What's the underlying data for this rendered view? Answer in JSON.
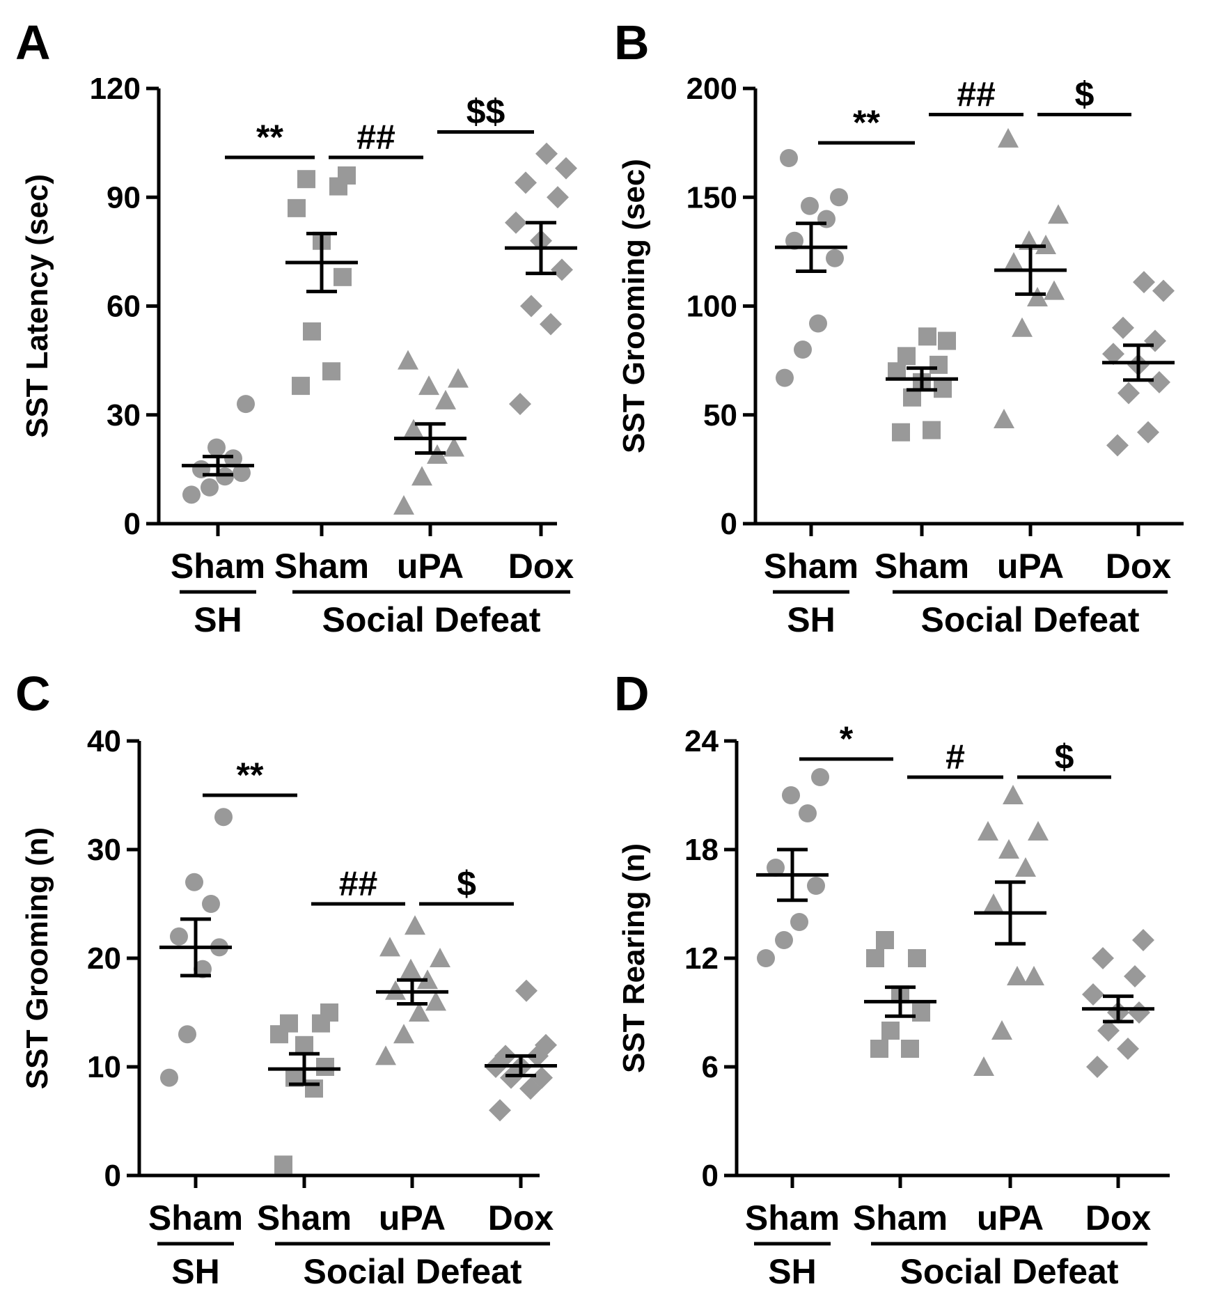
{
  "categories": [
    "Sham",
    "Sham",
    "uPA",
    "Dox"
  ],
  "groups": {
    "sh": "SH",
    "social_defeat": "Social Defeat"
  },
  "colors": {
    "points": "#999999",
    "lines": "#000000"
  },
  "chart_data": [
    {
      "panel": "A",
      "type": "scatter",
      "ylabel": "SST Latency (sec)",
      "ylim": [
        0,
        120
      ],
      "yticks": [
        0,
        30,
        60,
        90,
        120
      ],
      "series": [
        {
          "name": "SH Sham",
          "marker": "circle",
          "mean": 16,
          "sem": 2.5,
          "values": [
            8,
            10,
            13,
            14,
            15,
            18,
            21,
            33
          ]
        },
        {
          "name": "Social Defeat Sham",
          "marker": "square",
          "mean": 72,
          "sem": 8,
          "values": [
            38,
            42,
            53,
            68,
            78,
            87,
            93,
            95,
            96
          ]
        },
        {
          "name": "Social Defeat uPA",
          "marker": "triangle",
          "mean": 23.5,
          "sem": 4,
          "values": [
            5,
            13,
            19,
            21,
            26,
            34,
            38,
            40,
            45
          ]
        },
        {
          "name": "Social Defeat Dox",
          "marker": "diamond",
          "mean": 76,
          "sem": 7,
          "values": [
            33,
            55,
            60,
            70,
            78,
            83,
            90,
            94,
            98,
            102
          ]
        }
      ],
      "significance": [
        {
          "label": "**",
          "from": 0,
          "to": 1,
          "y": 101
        },
        {
          "label": "##",
          "from": 1,
          "to": 2,
          "y": 101
        },
        {
          "label": "$$",
          "from": 2,
          "to": 3,
          "y": 108
        }
      ]
    },
    {
      "panel": "B",
      "type": "scatter",
      "ylabel": "SST Grooming (sec)",
      "ylim": [
        0,
        200
      ],
      "yticks": [
        0,
        50,
        100,
        150,
        200
      ],
      "series": [
        {
          "name": "SH Sham",
          "marker": "circle",
          "mean": 127,
          "sem": 11,
          "values": [
            67,
            80,
            92,
            122,
            130,
            140,
            146,
            150,
            168
          ]
        },
        {
          "name": "Social Defeat Sham",
          "marker": "square",
          "mean": 66.5,
          "sem": 5,
          "values": [
            42,
            43,
            58,
            62,
            65,
            70,
            73,
            77,
            84,
            86
          ]
        },
        {
          "name": "Social Defeat uPA",
          "marker": "triangle",
          "mean": 116.5,
          "sem": 11,
          "values": [
            48,
            90,
            104,
            107,
            120,
            128,
            130,
            142,
            177
          ]
        },
        {
          "name": "Social Defeat Dox",
          "marker": "diamond",
          "mean": 74,
          "sem": 8,
          "values": [
            36,
            42,
            60,
            65,
            73,
            78,
            84,
            90,
            107,
            111
          ]
        }
      ],
      "significance": [
        {
          "label": "**",
          "from": 0,
          "to": 1,
          "y": 175
        },
        {
          "label": "##",
          "from": 1,
          "to": 2,
          "y": 188
        },
        {
          "label": "$",
          "from": 2,
          "to": 3,
          "y": 188
        }
      ]
    },
    {
      "panel": "C",
      "type": "scatter",
      "ylabel": "SST Grooming (n)",
      "ylim": [
        0,
        40
      ],
      "yticks": [
        0,
        10,
        20,
        30,
        40
      ],
      "series": [
        {
          "name": "SH Sham",
          "marker": "circle",
          "mean": 21,
          "sem": 2.6,
          "values": [
            9,
            13,
            19,
            21,
            22,
            25,
            27,
            33
          ]
        },
        {
          "name": "Social Defeat Sham",
          "marker": "square",
          "mean": 9.8,
          "sem": 1.4,
          "values": [
            1,
            8,
            9,
            10,
            12,
            13,
            14,
            14,
            15
          ]
        },
        {
          "name": "Social Defeat uPA",
          "marker": "triangle",
          "mean": 16.9,
          "sem": 1.1,
          "values": [
            11,
            13,
            15,
            16,
            17,
            18,
            19,
            20,
            21,
            23
          ]
        },
        {
          "name": "Social Defeat Dox",
          "marker": "diamond",
          "mean": 10.1,
          "sem": 0.9,
          "values": [
            6,
            8,
            9,
            9,
            10,
            10,
            11,
            11,
            12,
            17
          ]
        }
      ],
      "significance": [
        {
          "label": "**",
          "from": 0,
          "to": 1,
          "y": 35
        },
        {
          "label": "##",
          "from": 1,
          "to": 2,
          "y": 25
        },
        {
          "label": "$",
          "from": 2,
          "to": 3,
          "y": 25
        }
      ]
    },
    {
      "panel": "D",
      "type": "scatter",
      "ylabel": "SST Rearing (n)",
      "ylim": [
        0,
        24
      ],
      "yticks": [
        0,
        6,
        12,
        18,
        24
      ],
      "series": [
        {
          "name": "SH Sham",
          "marker": "circle",
          "mean": 16.6,
          "sem": 1.4,
          "values": [
            12,
            13,
            14,
            16,
            17,
            20,
            21,
            22
          ]
        },
        {
          "name": "Social Defeat Sham",
          "marker": "square",
          "mean": 9.6,
          "sem": 0.8,
          "values": [
            7,
            7,
            8,
            9,
            10,
            12,
            12,
            13
          ]
        },
        {
          "name": "Social Defeat uPA",
          "marker": "triangle",
          "mean": 14.5,
          "sem": 1.7,
          "values": [
            6,
            8,
            11,
            11,
            15,
            17,
            18,
            19,
            19,
            21
          ]
        },
        {
          "name": "Social Defeat Dox",
          "marker": "diamond",
          "mean": 9.2,
          "sem": 0.7,
          "values": [
            6,
            7,
            8,
            9,
            9,
            10,
            11,
            12,
            13
          ]
        }
      ],
      "significance": [
        {
          "label": "*",
          "from": 0,
          "to": 1,
          "y": 23
        },
        {
          "label": "#",
          "from": 1,
          "to": 2,
          "y": 22
        },
        {
          "label": "$",
          "from": 2,
          "to": 3,
          "y": 22
        }
      ]
    }
  ]
}
